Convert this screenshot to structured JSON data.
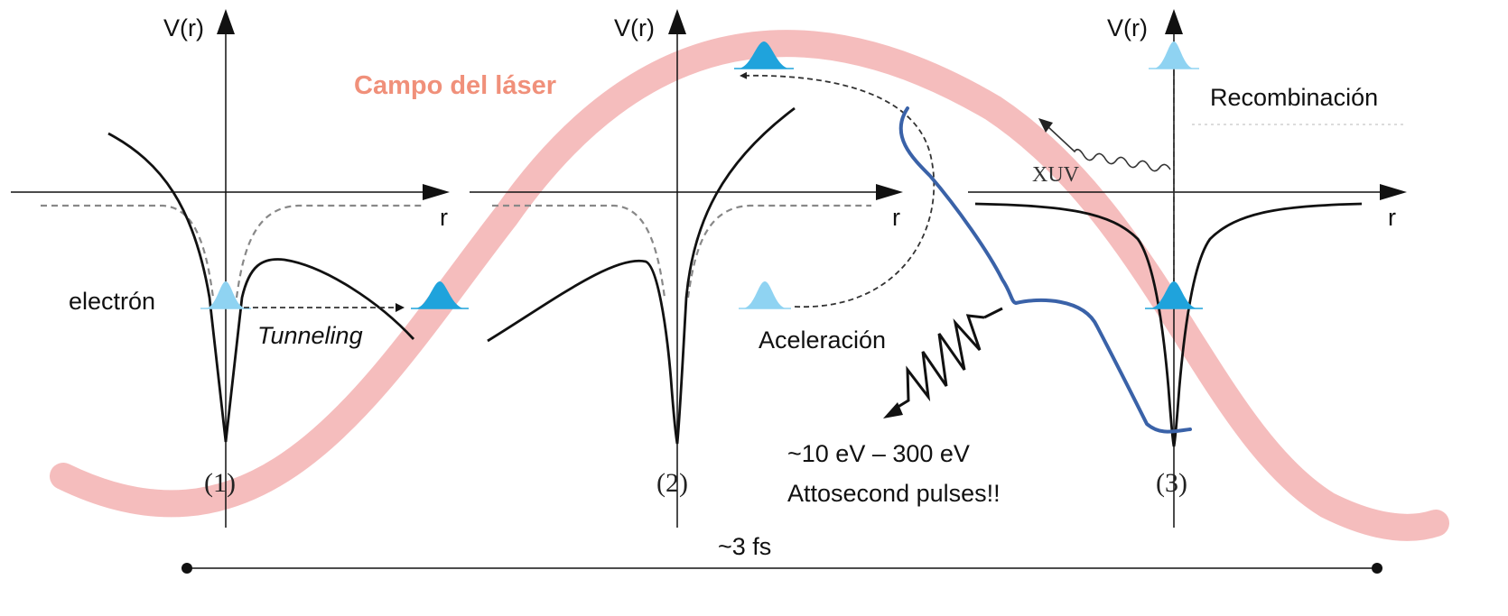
{
  "colors": {
    "laser_field": "#f4b9b9",
    "laser_label": "#f0907a",
    "wavepacket": "#1fa3dc",
    "wavepacket_light": "#8fd3f2",
    "bracket": "#3a62a8",
    "ink": "#111111"
  },
  "texts": {
    "laser_label": "Campo del láser",
    "axis_v_1": "V(r)",
    "axis_v_2": "V(r)",
    "axis_v_3": "V(r)",
    "axis_r_1": "r",
    "axis_r_2": "r",
    "axis_r_3": "r",
    "electron": "electrón",
    "tunneling": "Tunneling",
    "acceleration": "Aceleración",
    "recombination": "Recombinación",
    "xuv": "XUV",
    "energy_range": "~10 eV – 300 eV",
    "attosecond": "Attosecond pulses!!",
    "stage_1": "(1)",
    "stage_2": "(2)",
    "stage_3": "(3)",
    "time_span": "~3 fs"
  }
}
